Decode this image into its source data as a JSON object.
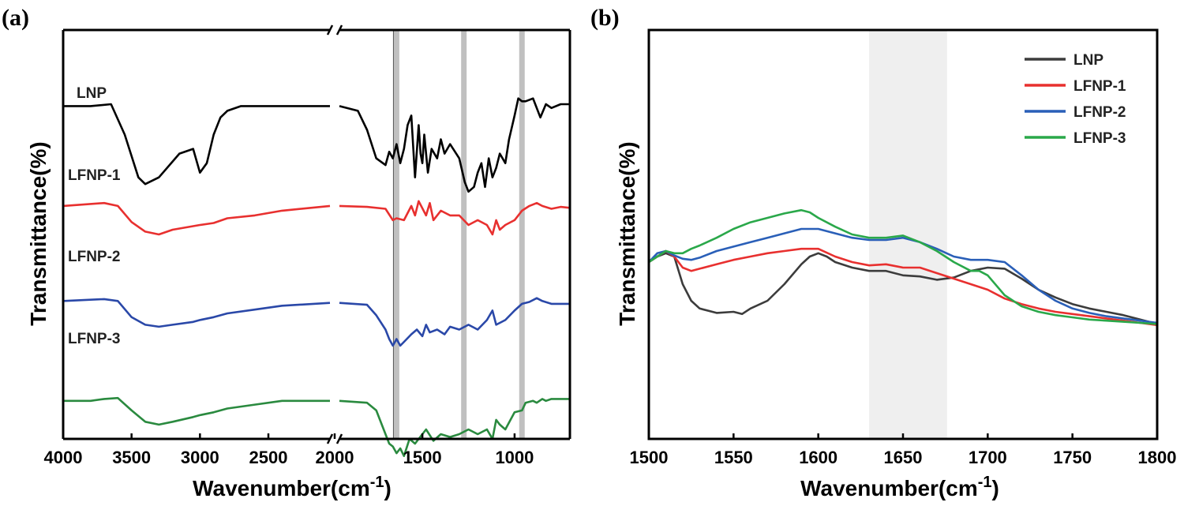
{
  "chart_data": [
    {
      "panel": "(a)",
      "type": "line",
      "xlabel": "Wavenumber(cm",
      "xlabel_sup": "-1",
      "xlabel_tail": ")",
      "ylabel": "Transmittance(%)",
      "x_reversed": true,
      "x_break": [
        2050,
        1950
      ],
      "segments": [
        {
          "xlim": [
            4000,
            2050
          ]
        },
        {
          "xlim": [
            1950,
            700
          ]
        }
      ],
      "xticks": [
        4000,
        3500,
        3000,
        2500,
        2000,
        1500,
        1000
      ],
      "xtick_labels": [
        "4000",
        "3500",
        "3000",
        "2500",
        "2000",
        "1500",
        "1000"
      ],
      "ylim": [
        -2.1,
        2.2
      ],
      "reference_lines": [
        {
          "x": 1655,
          "color": "#555555"
        },
        {
          "x": 1640,
          "color": "#c0c0c0"
        },
        {
          "x": 1275,
          "color": "#c0c0c0"
        },
        {
          "x": 960,
          "color": "#c0c0c0"
        }
      ],
      "series": [
        {
          "name": "LNP",
          "color": "#000000",
          "offset": 1.4,
          "x": [
            4000,
            3800,
            3650,
            3550,
            3450,
            3400,
            3300,
            3150,
            3050,
            3000,
            2950,
            2900,
            2850,
            2800,
            2700,
            2500,
            2300,
            2050,
            1950,
            1850,
            1800,
            1750,
            1700,
            1680,
            1660,
            1640,
            1620,
            1600,
            1580,
            1560,
            1540,
            1520,
            1510,
            1500,
            1490,
            1470,
            1450,
            1420,
            1400,
            1380,
            1350,
            1300,
            1270,
            1250,
            1220,
            1200,
            1180,
            1160,
            1140,
            1120,
            1100,
            1080,
            1050,
            1030,
            1000,
            980,
            960,
            940,
            900,
            860,
            830,
            800,
            750,
            700
          ],
          "y": [
            0,
            0,
            0.02,
            -0.3,
            -0.75,
            -0.82,
            -0.75,
            -0.5,
            -0.45,
            -0.7,
            -0.6,
            -0.3,
            -0.12,
            -0.05,
            0,
            0,
            0,
            0,
            0,
            -0.05,
            -0.25,
            -0.55,
            -0.62,
            -0.48,
            -0.55,
            -0.4,
            -0.6,
            -0.45,
            -0.2,
            -0.1,
            -0.75,
            -0.2,
            -0.5,
            -0.6,
            -0.3,
            -0.7,
            -0.45,
            -0.55,
            -0.35,
            -0.5,
            -0.4,
            -0.55,
            -0.8,
            -0.9,
            -0.85,
            -0.7,
            -0.6,
            -0.85,
            -0.55,
            -0.75,
            -0.65,
            -0.5,
            -0.6,
            -0.35,
            -0.1,
            0.08,
            0.05,
            0.05,
            0.08,
            -0.12,
            0.02,
            -0.02,
            0.02,
            0.02
          ]
        },
        {
          "name": "LFNP-1",
          "color": "#e8302f",
          "offset": 0.3,
          "x": [
            4000,
            3700,
            3600,
            3500,
            3400,
            3300,
            3200,
            3000,
            2900,
            2800,
            2600,
            2400,
            2050,
            1950,
            1800,
            1700,
            1660,
            1640,
            1600,
            1560,
            1540,
            1520,
            1480,
            1460,
            1440,
            1400,
            1350,
            1300,
            1250,
            1200,
            1150,
            1120,
            1100,
            1080,
            1050,
            1000,
            960,
            920,
            880,
            850,
            800,
            750,
            700
          ],
          "y": [
            0.05,
            0.08,
            0.05,
            -0.12,
            -0.22,
            -0.25,
            -0.2,
            -0.15,
            -0.13,
            -0.08,
            -0.05,
            0,
            0.05,
            0.05,
            0.04,
            0.02,
            -0.1,
            -0.08,
            -0.1,
            0.05,
            -0.05,
            0.1,
            -0.05,
            0.08,
            -0.1,
            0,
            -0.05,
            -0.05,
            -0.15,
            -0.1,
            -0.15,
            -0.25,
            -0.1,
            -0.2,
            -0.15,
            -0.1,
            0,
            0.05,
            0.08,
            0.05,
            0.02,
            0.04,
            0.03
          ]
        },
        {
          "name": "LFNP-2",
          "color": "#2a48a8",
          "offset": -0.7,
          "x": [
            4000,
            3700,
            3600,
            3500,
            3400,
            3300,
            3200,
            3050,
            3000,
            2900,
            2800,
            2600,
            2400,
            2050,
            1950,
            1800,
            1750,
            1700,
            1680,
            1660,
            1640,
            1620,
            1600,
            1560,
            1530,
            1500,
            1480,
            1460,
            1420,
            1380,
            1350,
            1300,
            1250,
            1200,
            1150,
            1120,
            1100,
            1050,
            1000,
            960,
            920,
            880,
            850,
            800,
            700
          ],
          "y": [
            0.05,
            0.07,
            0.05,
            -0.12,
            -0.2,
            -0.22,
            -0.2,
            -0.17,
            -0.15,
            -0.12,
            -0.08,
            -0.04,
            0,
            0.03,
            0.03,
            0.01,
            -0.1,
            -0.25,
            -0.35,
            -0.42,
            -0.35,
            -0.42,
            -0.38,
            -0.3,
            -0.25,
            -0.32,
            -0.2,
            -0.28,
            -0.25,
            -0.3,
            -0.22,
            -0.25,
            -0.2,
            -0.25,
            -0.15,
            -0.05,
            -0.2,
            -0.15,
            -0.05,
            0.02,
            0.04,
            0.08,
            0.05,
            0.02,
            0.02
          ]
        },
        {
          "name": "LFNP-3",
          "color": "#2a8a3f",
          "offset": -1.7,
          "x": [
            4000,
            3800,
            3700,
            3600,
            3500,
            3400,
            3300,
            3200,
            3050,
            3000,
            2900,
            2800,
            2600,
            2400,
            2050,
            1950,
            1800,
            1750,
            1700,
            1680,
            1660,
            1640,
            1620,
            1600,
            1570,
            1540,
            1500,
            1480,
            1440,
            1400,
            1350,
            1300,
            1250,
            1200,
            1150,
            1120,
            1100,
            1080,
            1050,
            1000,
            960,
            940,
            900,
            880,
            850,
            830,
            800,
            750,
            700
          ],
          "y": [
            0,
            0,
            0.02,
            0.03,
            -0.1,
            -0.22,
            -0.25,
            -0.22,
            -0.17,
            -0.15,
            -0.12,
            -0.08,
            -0.04,
            0,
            0,
            0,
            -0.02,
            -0.1,
            -0.35,
            -0.45,
            -0.48,
            -0.55,
            -0.5,
            -0.58,
            -0.4,
            -0.45,
            -0.35,
            -0.3,
            -0.42,
            -0.35,
            -0.38,
            -0.35,
            -0.3,
            -0.35,
            -0.3,
            -0.4,
            -0.2,
            -0.25,
            -0.3,
            -0.12,
            -0.1,
            -0.02,
            0,
            -0.02,
            0.02,
            0,
            0.02,
            0.02,
            0.02
          ]
        }
      ],
      "series_labels": [
        {
          "text": "LNP",
          "series": 0
        },
        {
          "text": "LFNP-1",
          "series": 1
        },
        {
          "text": "LFNP-2",
          "series": 2
        },
        {
          "text": "LFNP-3",
          "series": 3
        }
      ]
    },
    {
      "panel": "(b)",
      "type": "line",
      "xlabel": "Wavenumber(cm",
      "xlabel_sup": "-1",
      "xlabel_tail": ")",
      "ylabel": "Transmittance(%)",
      "xlim": [
        1500,
        1800
      ],
      "xticks": [
        1500,
        1550,
        1600,
        1650,
        1700,
        1750,
        1800
      ],
      "xtick_labels": [
        "1500",
        "1550",
        "1600",
        "1650",
        "1700",
        "1750",
        "1800"
      ],
      "ylim": [
        -1.6,
        2.1
      ],
      "shaded_region": [
        1630,
        1676
      ],
      "legend_position": "top-right",
      "series": [
        {
          "name": "LNP",
          "color": "#3c3c3c",
          "x": [
            1500,
            1505,
            1510,
            1515,
            1520,
            1525,
            1530,
            1540,
            1550,
            1555,
            1560,
            1570,
            1580,
            1590,
            1595,
            1600,
            1605,
            1610,
            1620,
            1630,
            1640,
            1650,
            1660,
            1670,
            1680,
            1690,
            1700,
            1710,
            1720,
            1730,
            1740,
            1750,
            1760,
            1770,
            1780,
            1790,
            1800
          ],
          "y": [
            0,
            0.05,
            0.08,
            0.05,
            -0.2,
            -0.35,
            -0.42,
            -0.46,
            -0.45,
            -0.47,
            -0.42,
            -0.35,
            -0.2,
            -0.02,
            0.05,
            0.08,
            0.05,
            0,
            -0.05,
            -0.08,
            -0.08,
            -0.12,
            -0.13,
            -0.16,
            -0.14,
            -0.08,
            -0.05,
            -0.06,
            -0.15,
            -0.25,
            -0.32,
            -0.38,
            -0.42,
            -0.45,
            -0.48,
            -0.52,
            -0.56
          ]
        },
        {
          "name": "LFNP-1",
          "color": "#e8302f",
          "x": [
            1500,
            1505,
            1510,
            1515,
            1520,
            1525,
            1530,
            1540,
            1550,
            1560,
            1570,
            1580,
            1590,
            1600,
            1610,
            1620,
            1630,
            1640,
            1650,
            1660,
            1670,
            1680,
            1690,
            1700,
            1710,
            1720,
            1730,
            1740,
            1750,
            1760,
            1770,
            1780,
            1790,
            1800
          ],
          "y": [
            0,
            0.05,
            0.1,
            0.05,
            -0.05,
            -0.08,
            -0.06,
            -0.02,
            0.02,
            0.05,
            0.08,
            0.1,
            0.12,
            0.12,
            0.05,
            0,
            -0.03,
            -0.02,
            -0.05,
            -0.05,
            -0.1,
            -0.15,
            -0.2,
            -0.25,
            -0.33,
            -0.38,
            -0.42,
            -0.45,
            -0.47,
            -0.49,
            -0.51,
            -0.53,
            -0.55,
            -0.57
          ]
        },
        {
          "name": "LFNP-2",
          "color": "#2a5fb8",
          "x": [
            1500,
            1505,
            1510,
            1515,
            1520,
            1525,
            1530,
            1540,
            1550,
            1560,
            1570,
            1580,
            1590,
            1600,
            1610,
            1620,
            1630,
            1640,
            1650,
            1660,
            1670,
            1680,
            1690,
            1700,
            1710,
            1720,
            1730,
            1740,
            1750,
            1760,
            1770,
            1780,
            1790,
            1800
          ],
          "y": [
            0,
            0.08,
            0.1,
            0.06,
            0.03,
            0.02,
            0.04,
            0.1,
            0.14,
            0.18,
            0.22,
            0.26,
            0.3,
            0.3,
            0.26,
            0.22,
            0.2,
            0.2,
            0.22,
            0.18,
            0.12,
            0.05,
            0.02,
            0.02,
            0,
            -0.12,
            -0.25,
            -0.35,
            -0.42,
            -0.46,
            -0.49,
            -0.51,
            -0.53,
            -0.55
          ]
        },
        {
          "name": "LFNP-3",
          "color": "#2aa84a",
          "x": [
            1500,
            1505,
            1510,
            1515,
            1520,
            1525,
            1530,
            1540,
            1550,
            1560,
            1570,
            1580,
            1590,
            1595,
            1600,
            1610,
            1620,
            1630,
            1640,
            1650,
            1660,
            1670,
            1680,
            1690,
            1695,
            1700,
            1710,
            1720,
            1730,
            1740,
            1750,
            1760,
            1770,
            1780,
            1790,
            1800
          ],
          "y": [
            0,
            0.05,
            0.1,
            0.08,
            0.08,
            0.12,
            0.15,
            0.22,
            0.3,
            0.36,
            0.4,
            0.44,
            0.47,
            0.45,
            0.4,
            0.32,
            0.25,
            0.22,
            0.22,
            0.24,
            0.18,
            0.1,
            0,
            -0.08,
            -0.08,
            -0.12,
            -0.3,
            -0.4,
            -0.45,
            -0.48,
            -0.5,
            -0.52,
            -0.53,
            -0.54,
            -0.55,
            -0.56
          ]
        }
      ]
    }
  ]
}
